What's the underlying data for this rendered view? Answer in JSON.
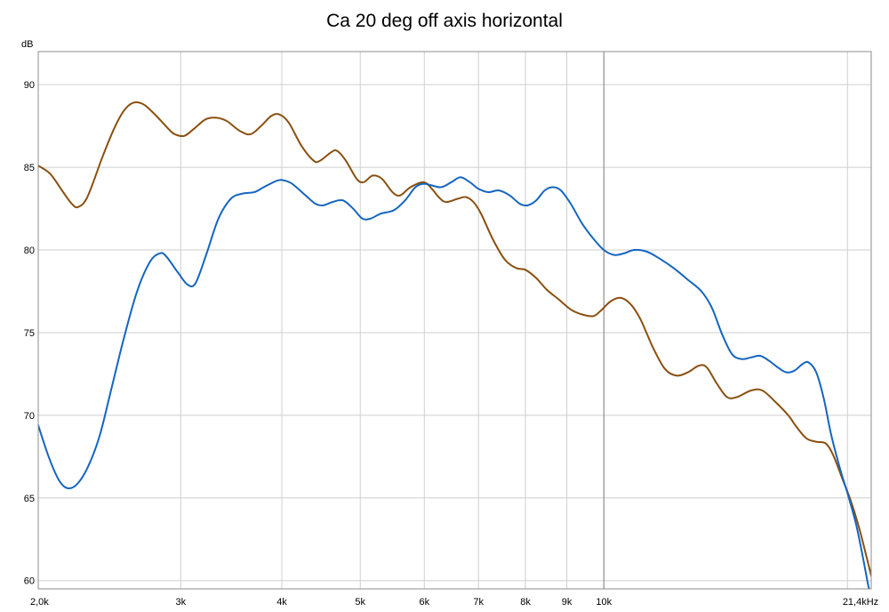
{
  "chart_data": {
    "type": "line",
    "title": "Ca 20 deg off axis horizontal",
    "ylabel": "dB",
    "xscale": "log",
    "xlim": [
      2000,
      21400
    ],
    "ylim": [
      59.5,
      92
    ],
    "grid": true,
    "legend": "none",
    "x_ticks": [
      {
        "value": 2000,
        "label": "2,0k"
      },
      {
        "value": 3000,
        "label": "3k"
      },
      {
        "value": 4000,
        "label": "4k"
      },
      {
        "value": 5000,
        "label": "5k"
      },
      {
        "value": 6000,
        "label": "6k"
      },
      {
        "value": 7000,
        "label": "7k"
      },
      {
        "value": 8000,
        "label": "8k"
      },
      {
        "value": 9000,
        "label": "9k"
      },
      {
        "value": 10000,
        "label": "10k"
      },
      {
        "value": 21400,
        "label": "21,4kHz"
      }
    ],
    "x_minor_grid": [
      20000
    ],
    "y_ticks": [
      {
        "value": 60,
        "label": "60"
      },
      {
        "value": 65,
        "label": "65"
      },
      {
        "value": 70,
        "label": "70"
      },
      {
        "value": 75,
        "label": "75"
      },
      {
        "value": 80,
        "label": "80"
      },
      {
        "value": 85,
        "label": "85"
      },
      {
        "value": 90,
        "label": "90"
      }
    ],
    "series": [
      {
        "color": "#8a5010",
        "points": [
          [
            2000,
            85.1
          ],
          [
            2070,
            84.6
          ],
          [
            2140,
            83.6
          ],
          [
            2200,
            82.8
          ],
          [
            2240,
            82.6
          ],
          [
            2300,
            83.2
          ],
          [
            2400,
            85.6
          ],
          [
            2480,
            87.3
          ],
          [
            2550,
            88.4
          ],
          [
            2620,
            88.9
          ],
          [
            2700,
            88.8
          ],
          [
            2800,
            88.1
          ],
          [
            2900,
            87.3
          ],
          [
            2950,
            87.0
          ],
          [
            3030,
            86.9
          ],
          [
            3110,
            87.3
          ],
          [
            3220,
            87.9
          ],
          [
            3320,
            88.0
          ],
          [
            3420,
            87.8
          ],
          [
            3550,
            87.2
          ],
          [
            3660,
            87.0
          ],
          [
            3770,
            87.5
          ],
          [
            3880,
            88.1
          ],
          [
            3970,
            88.2
          ],
          [
            4080,
            87.7
          ],
          [
            4230,
            86.3
          ],
          [
            4380,
            85.4
          ],
          [
            4460,
            85.4
          ],
          [
            4600,
            85.9
          ],
          [
            4680,
            86.0
          ],
          [
            4800,
            85.4
          ],
          [
            4950,
            84.3
          ],
          [
            5050,
            84.1
          ],
          [
            5180,
            84.5
          ],
          [
            5320,
            84.3
          ],
          [
            5480,
            83.5
          ],
          [
            5600,
            83.3
          ],
          [
            5770,
            83.8
          ],
          [
            5990,
            84.1
          ],
          [
            6130,
            83.7
          ],
          [
            6250,
            83.2
          ],
          [
            6380,
            82.9
          ],
          [
            6600,
            83.1
          ],
          [
            6750,
            83.2
          ],
          [
            6900,
            82.9
          ],
          [
            7050,
            82.2
          ],
          [
            7300,
            80.6
          ],
          [
            7550,
            79.4
          ],
          [
            7800,
            78.9
          ],
          [
            8000,
            78.8
          ],
          [
            8250,
            78.3
          ],
          [
            8500,
            77.6
          ],
          [
            8800,
            77.0
          ],
          [
            9100,
            76.4
          ],
          [
            9400,
            76.1
          ],
          [
            9700,
            76.0
          ],
          [
            9900,
            76.3
          ],
          [
            10200,
            76.9
          ],
          [
            10500,
            77.1
          ],
          [
            10800,
            76.7
          ],
          [
            11100,
            75.8
          ],
          [
            11500,
            74.1
          ],
          [
            11900,
            72.8
          ],
          [
            12300,
            72.4
          ],
          [
            12700,
            72.6
          ],
          [
            13100,
            73.0
          ],
          [
            13400,
            72.9
          ],
          [
            13800,
            71.9
          ],
          [
            14200,
            71.1
          ],
          [
            14600,
            71.1
          ],
          [
            15200,
            71.5
          ],
          [
            15700,
            71.5
          ],
          [
            16300,
            70.8
          ],
          [
            16900,
            70.0
          ],
          [
            17300,
            69.3
          ],
          [
            17800,
            68.6
          ],
          [
            18300,
            68.4
          ],
          [
            18800,
            68.3
          ],
          [
            19200,
            67.6
          ],
          [
            19700,
            66.2
          ],
          [
            20200,
            64.8
          ],
          [
            20700,
            63.1
          ],
          [
            21100,
            61.5
          ],
          [
            21400,
            60.3
          ]
        ]
      },
      {
        "color": "#1565c0",
        "points": [
          [
            2000,
            69.4
          ],
          [
            2060,
            67.5
          ],
          [
            2120,
            66.1
          ],
          [
            2170,
            65.6
          ],
          [
            2230,
            65.8
          ],
          [
            2300,
            66.8
          ],
          [
            2380,
            68.7
          ],
          [
            2460,
            71.5
          ],
          [
            2550,
            74.6
          ],
          [
            2650,
            77.5
          ],
          [
            2750,
            79.3
          ],
          [
            2830,
            79.8
          ],
          [
            2880,
            79.6
          ],
          [
            2980,
            78.6
          ],
          [
            3060,
            77.9
          ],
          [
            3130,
            78.0
          ],
          [
            3230,
            79.8
          ],
          [
            3340,
            81.9
          ],
          [
            3460,
            83.1
          ],
          [
            3570,
            83.4
          ],
          [
            3700,
            83.5
          ],
          [
            3800,
            83.8
          ],
          [
            3950,
            84.2
          ],
          [
            4030,
            84.2
          ],
          [
            4120,
            84.0
          ],
          [
            4280,
            83.3
          ],
          [
            4400,
            82.8
          ],
          [
            4500,
            82.7
          ],
          [
            4620,
            82.9
          ],
          [
            4760,
            83.0
          ],
          [
            4900,
            82.5
          ],
          [
            5030,
            81.9
          ],
          [
            5150,
            81.9
          ],
          [
            5300,
            82.2
          ],
          [
            5500,
            82.4
          ],
          [
            5680,
            83.0
          ],
          [
            5850,
            83.8
          ],
          [
            5990,
            84.0
          ],
          [
            6130,
            83.9
          ],
          [
            6300,
            83.8
          ],
          [
            6480,
            84.1
          ],
          [
            6650,
            84.4
          ],
          [
            6830,
            84.1
          ],
          [
            7000,
            83.7
          ],
          [
            7200,
            83.5
          ],
          [
            7420,
            83.6
          ],
          [
            7650,
            83.3
          ],
          [
            7870,
            82.8
          ],
          [
            8050,
            82.7
          ],
          [
            8250,
            83.0
          ],
          [
            8450,
            83.6
          ],
          [
            8650,
            83.8
          ],
          [
            8850,
            83.6
          ],
          [
            9100,
            82.8
          ],
          [
            9400,
            81.6
          ],
          [
            9700,
            80.7
          ],
          [
            10000,
            80.0
          ],
          [
            10300,
            79.7
          ],
          [
            10600,
            79.8
          ],
          [
            10900,
            80.0
          ],
          [
            11300,
            79.9
          ],
          [
            11700,
            79.5
          ],
          [
            12200,
            78.9
          ],
          [
            12700,
            78.2
          ],
          [
            13200,
            77.5
          ],
          [
            13600,
            76.5
          ],
          [
            14000,
            74.9
          ],
          [
            14400,
            73.7
          ],
          [
            14800,
            73.4
          ],
          [
            15200,
            73.5
          ],
          [
            15600,
            73.6
          ],
          [
            16000,
            73.3
          ],
          [
            16400,
            72.9
          ],
          [
            16800,
            72.6
          ],
          [
            17200,
            72.7
          ],
          [
            17600,
            73.1
          ],
          [
            17900,
            73.2
          ],
          [
            18300,
            72.6
          ],
          [
            18700,
            71.0
          ],
          [
            19100,
            68.8
          ],
          [
            19600,
            66.7
          ],
          [
            20000,
            65.3
          ],
          [
            20500,
            63.4
          ],
          [
            20900,
            61.4
          ],
          [
            21200,
            59.8
          ],
          [
            21280,
            59.5
          ]
        ]
      }
    ]
  }
}
